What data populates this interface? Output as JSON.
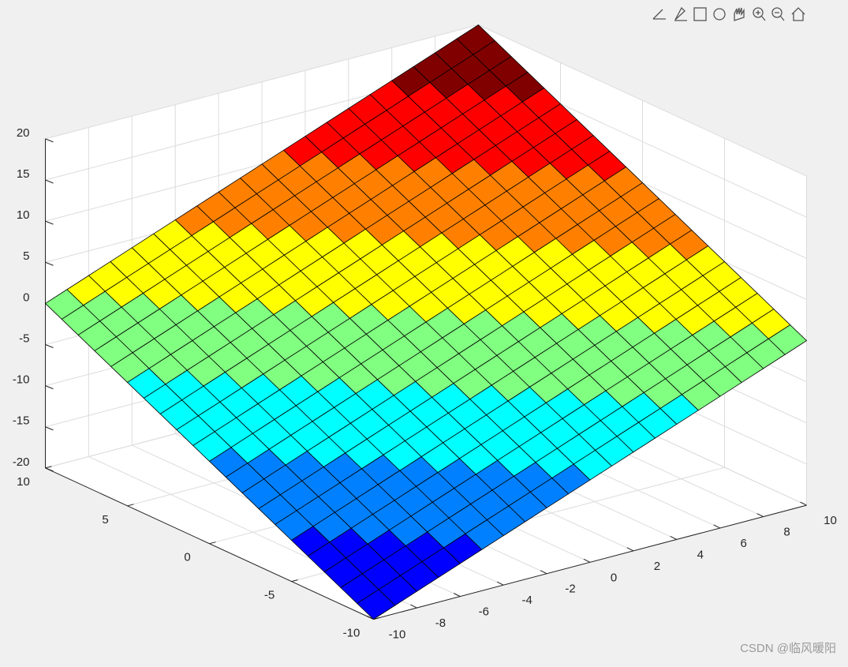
{
  "chart_data": {
    "type": "surface",
    "x": [
      -10,
      -9,
      -8,
      -7,
      -6,
      -5,
      -4,
      -3,
      -2,
      -1,
      0,
      1,
      2,
      3,
      4,
      5,
      6,
      7,
      8,
      9,
      10
    ],
    "y": [
      -10,
      -9,
      -8,
      -7,
      -6,
      -5,
      -4,
      -3,
      -2,
      -1,
      0,
      1,
      2,
      3,
      4,
      5,
      6,
      7,
      8,
      9,
      10
    ],
    "z": [
      [
        -20,
        -19,
        -18,
        -17,
        -16,
        -15,
        -14,
        -13,
        -12,
        -11,
        -10,
        -9,
        -8,
        -7,
        -6,
        -5,
        -4,
        -3,
        -2,
        -1,
        0
      ],
      [
        -19,
        -18,
        -17,
        -16,
        -15,
        -14,
        -13,
        -12,
        -11,
        -10,
        -9,
        -8,
        -7,
        -6,
        -5,
        -4,
        -3,
        -2,
        -1,
        0,
        1
      ],
      [
        -18,
        -17,
        -16,
        -15,
        -14,
        -13,
        -12,
        -11,
        -10,
        -9,
        -8,
        -7,
        -6,
        -5,
        -4,
        -3,
        -2,
        -1,
        0,
        1,
        2
      ],
      [
        -17,
        -16,
        -15,
        -14,
        -13,
        -12,
        -11,
        -10,
        -9,
        -8,
        -7,
        -6,
        -5,
        -4,
        -3,
        -2,
        -1,
        0,
        1,
        2,
        3
      ],
      [
        -16,
        -15,
        -14,
        -13,
        -12,
        -11,
        -10,
        -9,
        -8,
        -7,
        -6,
        -5,
        -4,
        -3,
        -2,
        -1,
        0,
        1,
        2,
        3,
        4
      ],
      [
        -15,
        -14,
        -13,
        -12,
        -11,
        -10,
        -9,
        -8,
        -7,
        -6,
        -5,
        -4,
        -3,
        -2,
        -1,
        0,
        1,
        2,
        3,
        4,
        5
      ],
      [
        -14,
        -13,
        -12,
        -11,
        -10,
        -9,
        -8,
        -7,
        -6,
        -5,
        -4,
        -3,
        -2,
        -1,
        0,
        1,
        2,
        3,
        4,
        5,
        6
      ],
      [
        -13,
        -12,
        -11,
        -10,
        -9,
        -8,
        -7,
        -6,
        -5,
        -4,
        -3,
        -2,
        -1,
        0,
        1,
        2,
        3,
        4,
        5,
        6,
        7
      ],
      [
        -12,
        -11,
        -10,
        -9,
        -8,
        -7,
        -6,
        -5,
        -4,
        -3,
        -2,
        -1,
        0,
        1,
        2,
        3,
        4,
        5,
        6,
        7,
        8
      ],
      [
        -11,
        -10,
        -9,
        -8,
        -7,
        -6,
        -5,
        -4,
        -3,
        -2,
        -1,
        0,
        1,
        2,
        3,
        4,
        5,
        6,
        7,
        8,
        9
      ],
      [
        -10,
        -9,
        -8,
        -7,
        -6,
        -5,
        -4,
        -3,
        -2,
        -1,
        0,
        1,
        2,
        3,
        4,
        5,
        6,
        7,
        8,
        9,
        10
      ],
      [
        -9,
        -8,
        -7,
        -6,
        -5,
        -4,
        -3,
        -2,
        -1,
        0,
        1,
        2,
        3,
        4,
        5,
        6,
        7,
        8,
        9,
        10,
        11
      ],
      [
        -8,
        -7,
        -6,
        -5,
        -4,
        -3,
        -2,
        -1,
        0,
        1,
        2,
        3,
        4,
        5,
        6,
        7,
        8,
        9,
        10,
        11,
        12
      ],
      [
        -7,
        -6,
        -5,
        -4,
        -3,
        -2,
        -1,
        0,
        1,
        2,
        3,
        4,
        5,
        6,
        7,
        8,
        9,
        10,
        11,
        12,
        13
      ],
      [
        -6,
        -5,
        -4,
        -3,
        -2,
        -1,
        0,
        1,
        2,
        3,
        4,
        5,
        6,
        7,
        8,
        9,
        10,
        11,
        12,
        13,
        14
      ],
      [
        -5,
        -4,
        -3,
        -2,
        -1,
        0,
        1,
        2,
        3,
        4,
        5,
        6,
        7,
        8,
        9,
        10,
        11,
        12,
        13,
        14,
        15
      ],
      [
        -4,
        -3,
        -2,
        -1,
        0,
        1,
        2,
        3,
        4,
        5,
        6,
        7,
        8,
        9,
        10,
        11,
        12,
        13,
        14,
        15,
        16
      ],
      [
        -3,
        -2,
        -1,
        0,
        1,
        2,
        3,
        4,
        5,
        6,
        7,
        8,
        9,
        10,
        11,
        12,
        13,
        14,
        15,
        16,
        17
      ],
      [
        -2,
        -1,
        0,
        1,
        2,
        3,
        4,
        5,
        6,
        7,
        8,
        9,
        10,
        11,
        12,
        13,
        14,
        15,
        16,
        17,
        18
      ],
      [
        -1,
        0,
        1,
        2,
        3,
        4,
        5,
        6,
        7,
        8,
        9,
        10,
        11,
        12,
        13,
        14,
        15,
        16,
        17,
        18,
        19
      ],
      [
        0,
        1,
        2,
        3,
        4,
        5,
        6,
        7,
        8,
        9,
        10,
        11,
        12,
        13,
        14,
        15,
        16,
        17,
        18,
        19,
        20
      ]
    ],
    "colormap": [
      "#0000ff",
      "#0080ff",
      "#00ffff",
      "#80ff80",
      "#ffff00",
      "#ff8000",
      "#ff0000",
      "#800000"
    ],
    "clim": [
      -20,
      20
    ],
    "xlim": [
      -10,
      10
    ],
    "ylim": [
      -10,
      10
    ],
    "zlim": [
      -20,
      20
    ],
    "xticks": [
      -10,
      -8,
      -6,
      -4,
      -2,
      0,
      2,
      4,
      6,
      8,
      10
    ],
    "yticks": [
      -10,
      -5,
      0,
      5,
      10
    ],
    "zticks": [
      -20,
      -15,
      -10,
      -5,
      0,
      5,
      10,
      15,
      20
    ],
    "grid": true
  },
  "watermark": "CSDN @临风暖阳"
}
